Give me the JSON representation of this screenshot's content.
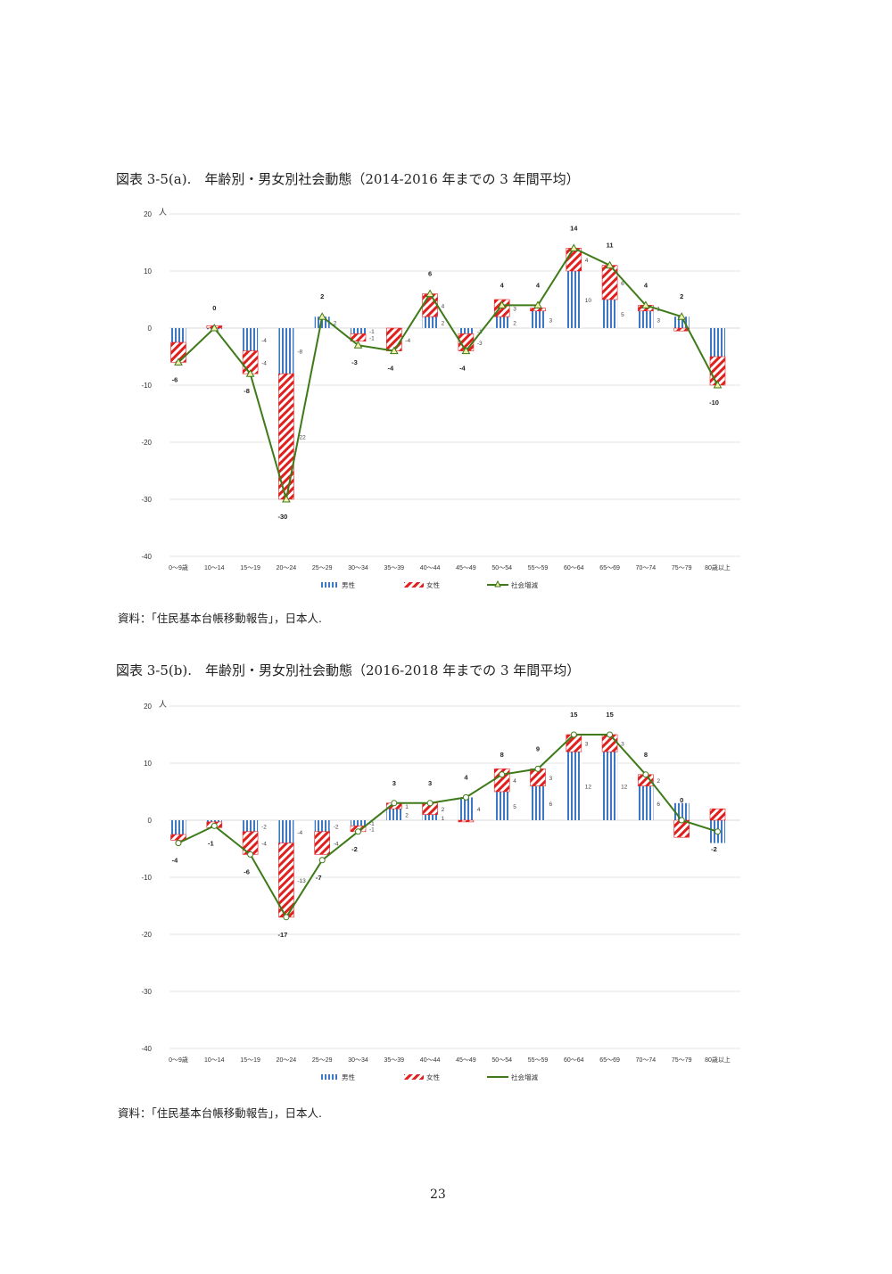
{
  "page_number": "23",
  "colors": {
    "male": "#3d78c4",
    "female": "#e0201e",
    "total": "#3e7a18",
    "grid": "#e6e6e6"
  },
  "chart_data": [
    {
      "type": "bar",
      "id": "a",
      "title": "図表 3-5(a).　年齢別・男女別社会動態（2014-2016 年までの 3 年間平均）",
      "source": "資料：「住民基本台帳移動報告」，日本人.",
      "ylabel": "人",
      "ylim": [
        -40,
        20
      ],
      "yticks": [
        "20",
        "10",
        "0",
        "-10",
        "-20",
        "-30",
        "-40"
      ],
      "ytick_values": [
        20,
        10,
        0,
        -10,
        -20,
        -30,
        -40
      ],
      "marker": "triangle",
      "categories": [
        "0～9歳",
        "10～14",
        "15～19",
        "20～24",
        "25～29",
        "30～34",
        "35～39",
        "40～44",
        "45～49",
        "50～54",
        "55～59",
        "60～64",
        "65～69",
        "70～74",
        "75～79",
        "80歳以上"
      ],
      "legend": [
        "男性",
        "女性",
        "社会増減"
      ],
      "series": [
        {
          "name": "男性",
          "values": [
            -2.5,
            -0.2,
            -4,
            -8,
            2,
            -1,
            0,
            2,
            -1,
            2,
            3,
            10,
            5,
            3,
            2,
            -5
          ],
          "labels": [
            null,
            null,
            "-4",
            "-8",
            "2",
            "-1",
            null,
            "2",
            "-1",
            "2",
            "3",
            "10",
            "5",
            "3",
            null,
            null
          ]
        },
        {
          "name": "女性",
          "values": [
            -3.5,
            0.4,
            -4,
            -22,
            0,
            -1.3,
            -4,
            4,
            -3,
            3,
            0.5,
            4,
            6,
            1,
            -0.5,
            -5
          ],
          "labels": [
            null,
            null,
            "-4",
            "-22",
            null,
            "-1",
            "-4",
            "4",
            "-3",
            "3",
            null,
            "4",
            "6",
            "1",
            null,
            null
          ]
        },
        {
          "name": "社会増減",
          "values": [
            -6,
            0,
            -8,
            -30,
            2,
            -3,
            -4,
            6,
            -4,
            4,
            4,
            14,
            11,
            4,
            2,
            -10
          ],
          "labels": [
            "-6",
            "0",
            "-8",
            "-30",
            "2",
            "-3",
            "-4",
            "6",
            "-4",
            "4",
            "4",
            "14",
            "11",
            "4",
            "2",
            "-10"
          ]
        }
      ]
    },
    {
      "type": "bar",
      "id": "b",
      "title": "図表 3-5(b).　年齢別・男女別社会動態（2016-2018 年までの 3 年間平均）",
      "source": "資料：「住民基本台帳移動報告」，日本人.",
      "ylabel": "人",
      "ylim": [
        -40,
        20
      ],
      "yticks": [
        "20",
        "10",
        "0",
        "-10",
        "-20",
        "-30",
        "-40"
      ],
      "ytick_values": [
        20,
        10,
        0,
        -10,
        -20,
        -30,
        -40
      ],
      "marker": "circle",
      "categories": [
        "0～9歳",
        "10～14",
        "15～19",
        "20～24",
        "25～29",
        "30～34",
        "35～39",
        "40～44",
        "45～49",
        "50～54",
        "55～59",
        "60～64",
        "65～69",
        "70～74",
        "75～79",
        "80歳以上"
      ],
      "legend": [
        "男性",
        "女性",
        "社会増減"
      ],
      "series": [
        {
          "name": "男性",
          "values": [
            -2.5,
            -0.3,
            -2,
            -4,
            -2,
            -1,
            2,
            1,
            4,
            5,
            6,
            12,
            12,
            6,
            3,
            -4
          ],
          "labels": [
            null,
            null,
            "-2",
            "-4",
            "-2",
            "-1",
            "2",
            "1",
            "4",
            "5",
            "6",
            "12",
            "12",
            "6",
            null,
            null
          ]
        },
        {
          "name": "女性",
          "values": [
            -1,
            -1,
            -4,
            -13,
            -4,
            -1,
            1,
            2,
            -0.3,
            4,
            3,
            3,
            3,
            2,
            -3,
            2
          ],
          "labels": [
            null,
            null,
            "-4",
            "-13",
            "-4",
            "-1",
            "1",
            "2",
            null,
            "4",
            "3",
            "3",
            "3",
            "2",
            null,
            null
          ]
        },
        {
          "name": "社会増減",
          "values": [
            -4,
            -1,
            -6,
            -17,
            -7,
            -2,
            3,
            3,
            4,
            8,
            9,
            15,
            15,
            8,
            0,
            -2
          ],
          "labels": [
            "-4",
            "-1",
            "-6",
            "-17",
            "-7",
            "-2",
            "3",
            "3",
            "4",
            "8",
            "9",
            "15",
            "15",
            "8",
            "0",
            "-2"
          ]
        }
      ]
    }
  ]
}
